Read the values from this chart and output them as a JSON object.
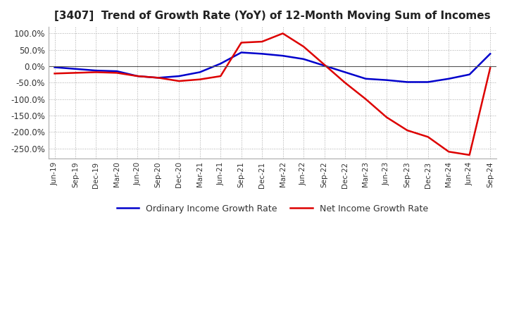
{
  "title": "[3407]  Trend of Growth Rate (YoY) of 12-Month Moving Sum of Incomes",
  "title_fontsize": 11,
  "ylim": [
    -280,
    120
  ],
  "yticks": [
    100,
    50,
    0,
    -50,
    -100,
    -150,
    -200,
    -250
  ],
  "background_color": "#ffffff",
  "grid_color": "#aaaaaa",
  "ordinary_color": "#0000cc",
  "net_color": "#dd0000",
  "legend_labels": [
    "Ordinary Income Growth Rate",
    "Net Income Growth Rate"
  ],
  "dates": [
    "Jun-19",
    "Sep-19",
    "Dec-19",
    "Mar-20",
    "Jun-20",
    "Sep-20",
    "Dec-20",
    "Mar-21",
    "Jun-21",
    "Sep-21",
    "Dec-21",
    "Mar-22",
    "Jun-22",
    "Sep-22",
    "Dec-22",
    "Mar-23",
    "Jun-23",
    "Sep-23",
    "Dec-23",
    "Mar-24",
    "Jun-24",
    "Sep-24"
  ],
  "ordinary_income": [
    -3,
    -8,
    -13,
    -15,
    -30,
    -35,
    -30,
    -18,
    8,
    42,
    38,
    32,
    22,
    2,
    -18,
    -38,
    -42,
    -48,
    -48,
    -38,
    -25,
    38
  ],
  "net_income": [
    -22,
    -20,
    -18,
    -20,
    -30,
    -35,
    -45,
    -40,
    -30,
    72,
    75,
    100,
    60,
    5,
    -50,
    -100,
    -155,
    -195,
    -215,
    -260,
    -270,
    -5
  ]
}
